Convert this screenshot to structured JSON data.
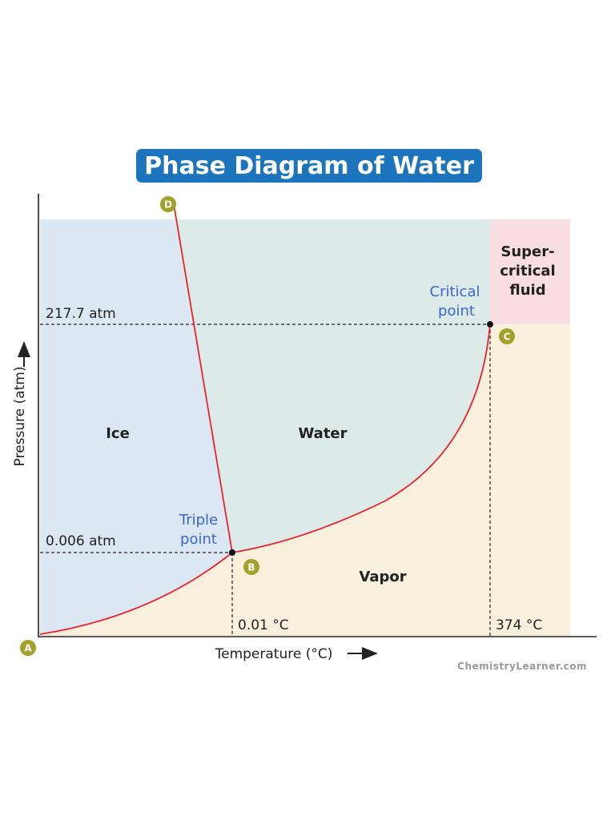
{
  "title": "Phase Diagram of Water",
  "colors": {
    "title_bg": "#1c75bc",
    "ice": "#dbe8f4",
    "water": "#dcebe8",
    "vapor": "#f8f0dc",
    "supercritical": "#f8dde2",
    "curve": "#e8232f",
    "label_blue": "#3a66d4",
    "marker": "#a4a12a"
  },
  "regions": {
    "ice": "Ice",
    "water": "Water",
    "vapor": "Vapor",
    "supercritical": [
      "Super-",
      "critical",
      "fluid"
    ]
  },
  "axes": {
    "y_label": "Pressure (atm)",
    "x_label": "Temperature (°C)"
  },
  "pressure_labels": {
    "critical": "217.7 atm",
    "triple": "0.006 atm"
  },
  "temperature_labels": {
    "triple": "0.01 °C",
    "critical": "374 °C"
  },
  "points": {
    "triple": [
      "Triple",
      "point"
    ],
    "critical": [
      "Critical",
      "point"
    ]
  },
  "markers": {
    "a": "A",
    "b": "B",
    "c": "C",
    "d": "D"
  },
  "credit": "ChemistryLearner.com"
}
